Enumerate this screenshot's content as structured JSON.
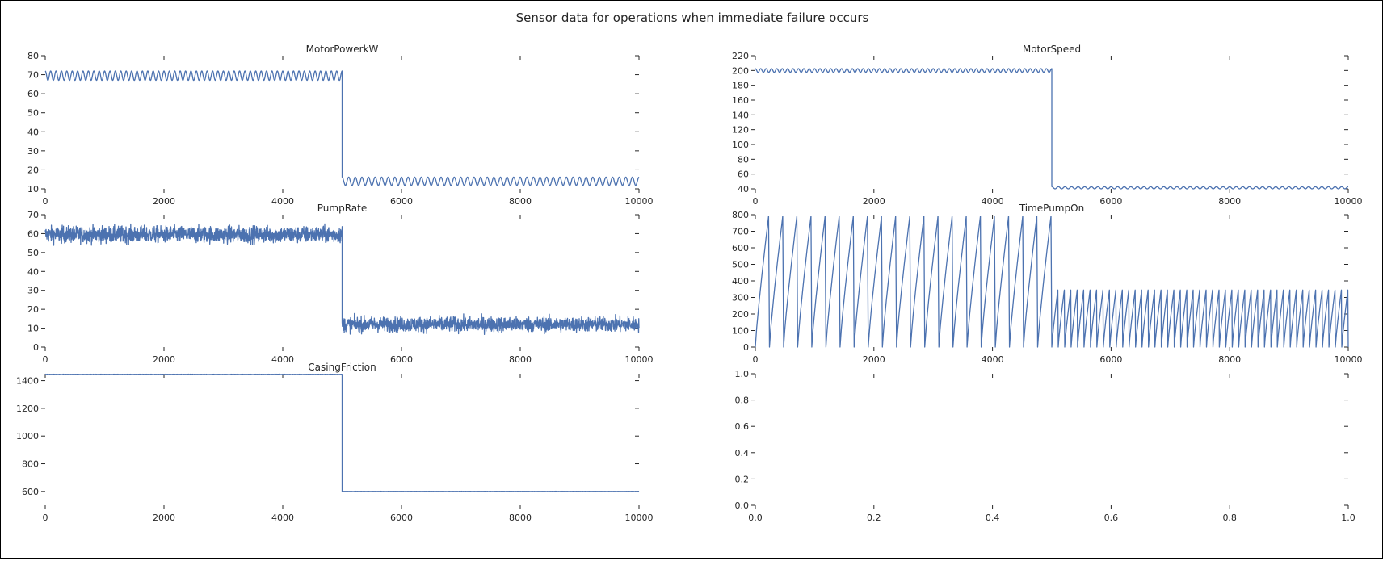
{
  "figure": {
    "title": "Sensor data for operations when immediate failure occurs",
    "line_color": "#4c72b0"
  },
  "chart_data": [
    {
      "type": "line",
      "title": "MotorPowerkW",
      "xlim": [
        0,
        10000
      ],
      "ylim": [
        10,
        80
      ],
      "x_ticks": [
        "0",
        "2000",
        "4000",
        "6000",
        "8000",
        "10000"
      ],
      "y_ticks": [
        "10",
        "20",
        "30",
        "40",
        "50",
        "60",
        "70",
        "80"
      ],
      "series": [
        {
          "segments": [
            {
              "x_start": 0,
              "x_end": 5000,
              "mean": 69.5,
              "amplitude": 2.5,
              "cycles": 55,
              "noise": 0
            },
            {
              "x_start": 5000,
              "x_end": 10000,
              "mean": 14,
              "amplitude": 2.2,
              "cycles": 45,
              "noise": 0
            }
          ]
        }
      ]
    },
    {
      "type": "line",
      "title": "MotorSpeed",
      "xlim": [
        0,
        10000
      ],
      "ylim": [
        40,
        220
      ],
      "x_ticks": [
        "0",
        "2000",
        "4000",
        "6000",
        "8000",
        "10000"
      ],
      "y_ticks": [
        "40",
        "60",
        "80",
        "100",
        "120",
        "140",
        "160",
        "180",
        "200",
        "220"
      ],
      "series": [
        {
          "segments": [
            {
              "x_start": 0,
              "x_end": 5000,
              "mean": 200,
              "amplitude": 2.5,
              "cycles": 55,
              "noise": 0
            },
            {
              "x_start": 5000,
              "x_end": 10000,
              "mean": 41.5,
              "amplitude": 1.5,
              "cycles": 45,
              "noise": 0
            }
          ]
        }
      ]
    },
    {
      "type": "line",
      "title": "PumpRate",
      "xlim": [
        0,
        10000
      ],
      "ylim": [
        0,
        70
      ],
      "x_ticks": [
        "0",
        "2000",
        "4000",
        "6000",
        "8000",
        "10000"
      ],
      "y_ticks": [
        "0",
        "10",
        "20",
        "30",
        "40",
        "50",
        "60",
        "70"
      ],
      "series": [
        {
          "segments": [
            {
              "x_start": 0,
              "x_end": 5000,
              "mean": 59.5,
              "amplitude": 0,
              "cycles": 0,
              "noise": 2.2
            },
            {
              "x_start": 5000,
              "x_end": 10000,
              "mean": 12,
              "amplitude": 0,
              "cycles": 0,
              "noise": 2.0
            }
          ]
        }
      ]
    },
    {
      "type": "line",
      "title": "TimePumpOn",
      "xlim": [
        0,
        10000
      ],
      "ylim": [
        0,
        800
      ],
      "x_ticks": [
        "0",
        "2000",
        "4000",
        "6000",
        "8000",
        "10000"
      ],
      "y_ticks": [
        "0",
        "100",
        "200",
        "300",
        "400",
        "500",
        "600",
        "700",
        "800"
      ],
      "series": [
        {
          "sawtooth": [
            {
              "x_start": 0,
              "x_end": 5000,
              "peak": 790,
              "cycles": 21
            },
            {
              "x_start": 5000,
              "x_end": 10000,
              "peak": 345,
              "cycles": 46
            }
          ]
        }
      ]
    },
    {
      "type": "line",
      "title": "CasingFriction",
      "xlim": [
        0,
        10000
      ],
      "ylim": [
        500,
        1450
      ],
      "x_ticks": [
        "0",
        "2000",
        "4000",
        "6000",
        "8000",
        "10000"
      ],
      "y_ticks": [
        "600",
        "800",
        "1000",
        "1200",
        "1400"
      ],
      "series": [
        {
          "segments": [
            {
              "x_start": 0,
              "x_end": 5000,
              "mean": 1445,
              "amplitude": 0,
              "cycles": 0,
              "noise": 0.8
            },
            {
              "x_start": 5000,
              "x_end": 10000,
              "mean": 600,
              "amplitude": 0,
              "cycles": 0,
              "noise": 0.5
            }
          ]
        }
      ]
    },
    {
      "type": "line",
      "title": "",
      "xlim": [
        0.0,
        1.0
      ],
      "ylim": [
        0.0,
        1.0
      ],
      "x_ticks": [
        "0.0",
        "0.2",
        "0.4",
        "0.6",
        "0.8",
        "1.0"
      ],
      "y_ticks": [
        "0.0",
        "0.2",
        "0.4",
        "0.6",
        "0.8",
        "1.0"
      ],
      "series": []
    }
  ]
}
